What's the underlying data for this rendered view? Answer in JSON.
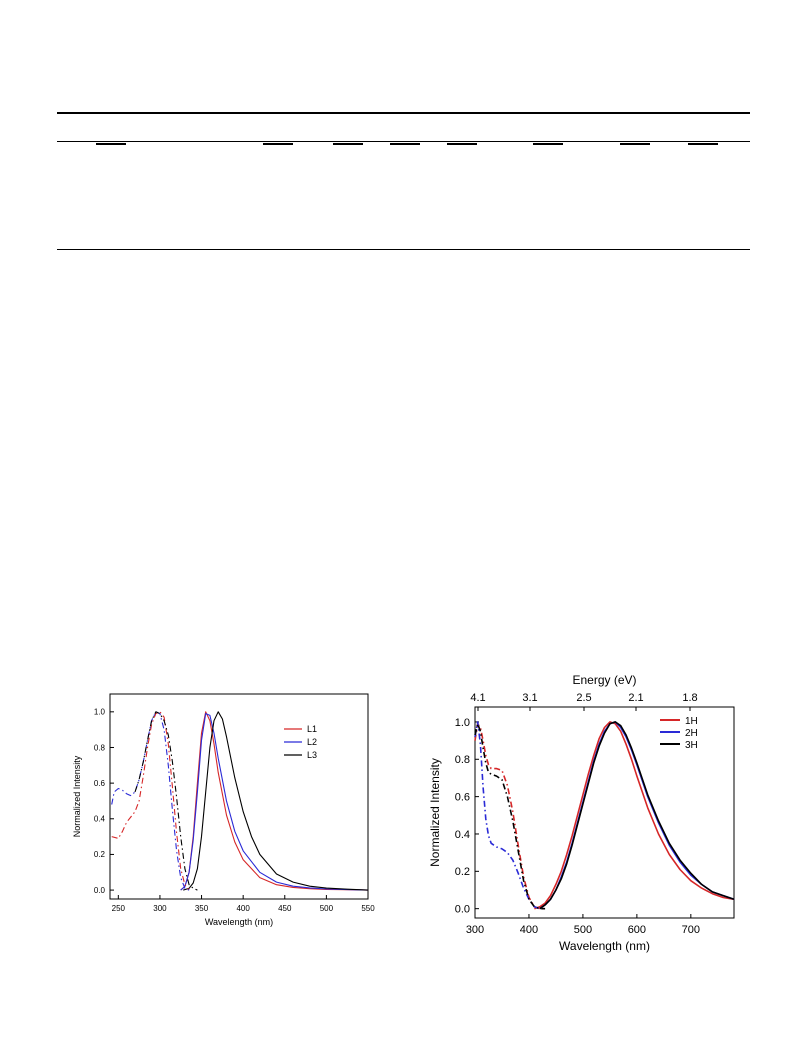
{
  "chart_data": [
    {
      "type": "line",
      "xlabel": "Wavelength (nm)",
      "ylabel": "Normalized Intensity",
      "xlim": [
        240,
        550
      ],
      "ylim": [
        -0.05,
        1.1
      ],
      "xticks": [
        250,
        300,
        350,
        400,
        450,
        500,
        550
      ],
      "yticks": [
        0.0,
        0.2,
        0.4,
        0.6,
        0.8,
        1.0
      ],
      "legend": "top-right",
      "series": [
        {
          "name": "L1",
          "color": "#d62728",
          "style": "solid",
          "x": [
            325,
            330,
            335,
            340,
            345,
            350,
            355,
            360,
            365,
            370,
            380,
            390,
            400,
            420,
            440,
            460,
            480,
            500,
            525,
            550
          ],
          "y": [
            0.0,
            0.02,
            0.1,
            0.3,
            0.6,
            0.88,
            1.0,
            0.95,
            0.82,
            0.66,
            0.42,
            0.27,
            0.17,
            0.07,
            0.03,
            0.015,
            0.008,
            0.004,
            0.002,
            0.0
          ]
        },
        {
          "name": "L2",
          "color": "#2a2ad6",
          "style": "solid",
          "x": [
            325,
            330,
            335,
            340,
            345,
            350,
            355,
            360,
            365,
            370,
            380,
            390,
            400,
            420,
            440,
            460,
            480,
            500,
            525,
            550
          ],
          "y": [
            0.0,
            0.02,
            0.1,
            0.28,
            0.55,
            0.84,
            0.99,
            0.98,
            0.88,
            0.74,
            0.5,
            0.33,
            0.22,
            0.1,
            0.045,
            0.022,
            0.012,
            0.006,
            0.003,
            0.0
          ]
        },
        {
          "name": "L3",
          "color": "#000000",
          "style": "solid",
          "x": [
            328,
            335,
            340,
            345,
            350,
            355,
            360,
            365,
            370,
            375,
            380,
            390,
            400,
            410,
            420,
            440,
            460,
            480,
            500,
            525,
            550
          ],
          "y": [
            0.0,
            0.01,
            0.04,
            0.12,
            0.3,
            0.55,
            0.8,
            0.95,
            1.0,
            0.96,
            0.86,
            0.63,
            0.44,
            0.3,
            0.2,
            0.09,
            0.045,
            0.022,
            0.011,
            0.005,
            0.0
          ]
        },
        {
          "name": "",
          "color": "#d62728",
          "style": "dashdot",
          "x": [
            242,
            250,
            255,
            260,
            265,
            270,
            275,
            280,
            285,
            290,
            295,
            300,
            305,
            310,
            315,
            320,
            325,
            330,
            335
          ],
          "y": [
            0.3,
            0.29,
            0.33,
            0.38,
            0.41,
            0.44,
            0.5,
            0.64,
            0.8,
            0.93,
            0.99,
            1.0,
            0.97,
            0.82,
            0.58,
            0.32,
            0.12,
            0.03,
            0.0
          ]
        },
        {
          "name": "",
          "color": "#2a2ad6",
          "style": "dashdot",
          "x": [
            242,
            245,
            250,
            255,
            260,
            265,
            270,
            275,
            280,
            285,
            290,
            295,
            300,
            305,
            310,
            315,
            320,
            325,
            330,
            335
          ],
          "y": [
            0.48,
            0.55,
            0.57,
            0.56,
            0.54,
            0.53,
            0.55,
            0.62,
            0.72,
            0.84,
            0.95,
            1.0,
            0.99,
            0.9,
            0.7,
            0.45,
            0.22,
            0.07,
            0.01,
            0.0
          ]
        },
        {
          "name": "",
          "color": "#000000",
          "style": "dashdot",
          "x": [
            270,
            275,
            280,
            285,
            290,
            295,
            300,
            305,
            310,
            315,
            320,
            325,
            330,
            335,
            340,
            345
          ],
          "y": [
            0.55,
            0.62,
            0.72,
            0.84,
            0.95,
            1.0,
            0.99,
            0.95,
            0.87,
            0.72,
            0.52,
            0.3,
            0.12,
            0.03,
            0.01,
            0.0
          ]
        }
      ]
    },
    {
      "type": "line",
      "xlabel": "Wavelength (nm)",
      "ylabel": "Normalized Intensity",
      "x2label": "Energy (eV)",
      "x2ticks": [
        "4.1",
        "3.1",
        "2.5",
        "2.1",
        "1.8"
      ],
      "xlim": [
        300,
        780
      ],
      "ylim": [
        -0.05,
        1.08
      ],
      "xticks": [
        300,
        400,
        500,
        600,
        700
      ],
      "yticks": [
        0.0,
        0.2,
        0.4,
        0.6,
        0.8,
        1.0
      ],
      "legend": "top-right",
      "series": [
        {
          "name": "1H",
          "color": "#d62728",
          "style": "solid",
          "x": [
            410,
            420,
            430,
            440,
            450,
            460,
            470,
            480,
            490,
            500,
            510,
            520,
            530,
            540,
            550,
            560,
            570,
            580,
            590,
            600,
            620,
            640,
            660,
            680,
            700,
            720,
            740,
            760,
            780
          ],
          "y": [
            0.0,
            0.01,
            0.03,
            0.07,
            0.13,
            0.2,
            0.29,
            0.39,
            0.5,
            0.61,
            0.72,
            0.82,
            0.91,
            0.97,
            1.0,
            0.99,
            0.95,
            0.88,
            0.8,
            0.71,
            0.54,
            0.4,
            0.29,
            0.21,
            0.15,
            0.11,
            0.08,
            0.06,
            0.05
          ]
        },
        {
          "name": "2H",
          "color": "#2a2ad6",
          "style": "solid",
          "x": [
            420,
            430,
            440,
            450,
            460,
            470,
            480,
            490,
            500,
            510,
            520,
            530,
            540,
            550,
            560,
            570,
            580,
            590,
            600,
            620,
            640,
            660,
            680,
            700,
            720,
            740,
            760,
            780
          ],
          "y": [
            0.0,
            0.02,
            0.05,
            0.1,
            0.17,
            0.25,
            0.35,
            0.46,
            0.57,
            0.68,
            0.79,
            0.88,
            0.95,
            0.99,
            1.0,
            0.97,
            0.92,
            0.85,
            0.77,
            0.6,
            0.46,
            0.34,
            0.25,
            0.18,
            0.13,
            0.09,
            0.07,
            0.05
          ]
        },
        {
          "name": "3H",
          "color": "#000000",
          "style": "solid",
          "x": [
            420,
            430,
            440,
            450,
            460,
            470,
            480,
            490,
            500,
            510,
            520,
            530,
            540,
            550,
            560,
            570,
            580,
            590,
            600,
            620,
            640,
            660,
            680,
            700,
            720,
            740,
            760,
            780
          ],
          "y": [
            0.0,
            0.02,
            0.05,
            0.1,
            0.16,
            0.24,
            0.34,
            0.45,
            0.56,
            0.67,
            0.78,
            0.87,
            0.94,
            0.99,
            1.0,
            0.98,
            0.93,
            0.86,
            0.78,
            0.61,
            0.47,
            0.35,
            0.26,
            0.19,
            0.13,
            0.09,
            0.07,
            0.05
          ]
        },
        {
          "name": "",
          "color": "#d62728",
          "style": "dashdot",
          "x": [
            300,
            305,
            310,
            315,
            320,
            325,
            330,
            340,
            350,
            360,
            370,
            380,
            390,
            400,
            410,
            420,
            430
          ],
          "y": [
            0.9,
            0.99,
            0.97,
            0.9,
            0.82,
            0.77,
            0.75,
            0.75,
            0.74,
            0.66,
            0.52,
            0.34,
            0.17,
            0.06,
            0.01,
            0.0,
            0.0
          ]
        },
        {
          "name": "",
          "color": "#2a2ad6",
          "style": "dashdot",
          "x": [
            300,
            305,
            310,
            315,
            320,
            325,
            330,
            340,
            350,
            360,
            370,
            380,
            390,
            400,
            410,
            420,
            430
          ],
          "y": [
            0.92,
            1.0,
            0.88,
            0.65,
            0.48,
            0.39,
            0.35,
            0.33,
            0.32,
            0.3,
            0.26,
            0.19,
            0.11,
            0.05,
            0.01,
            0.0,
            0.0
          ]
        },
        {
          "name": "",
          "color": "#000000",
          "style": "dashdot",
          "x": [
            300,
            305,
            310,
            315,
            320,
            325,
            330,
            340,
            350,
            360,
            370,
            380,
            390,
            400,
            410,
            420,
            430
          ],
          "y": [
            0.93,
            0.99,
            0.95,
            0.86,
            0.78,
            0.73,
            0.72,
            0.71,
            0.69,
            0.6,
            0.47,
            0.31,
            0.15,
            0.05,
            0.01,
            0.0,
            0.0
          ]
        }
      ]
    }
  ]
}
